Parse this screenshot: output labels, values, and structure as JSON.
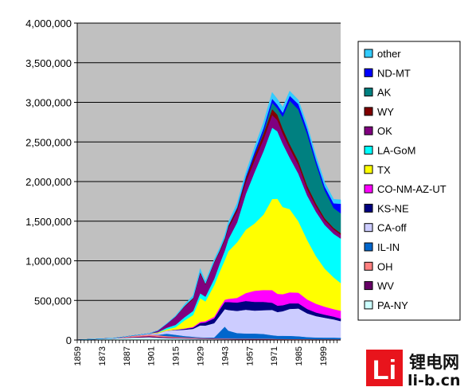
{
  "chart_data": {
    "type": "area",
    "stacked": true,
    "title": "",
    "xlabel": "",
    "ylabel": "",
    "ylim": [
      0,
      4000000
    ],
    "y_ticks": [
      "0",
      "500,000",
      "1,000,000",
      "1,500,000",
      "2,000,000",
      "2,500,000",
      "3,000,000",
      "3,500,000",
      "4,000,000"
    ],
    "x_ticks": [
      "1859",
      "1873",
      "1887",
      "1901",
      "1915",
      "1929",
      "1943",
      "1957",
      "1971",
      "1985",
      "1999"
    ],
    "xlim": [
      1859,
      2009
    ],
    "grid": "horizontal",
    "legend_position": "right",
    "x": [
      1859,
      1880,
      1890,
      1900,
      1905,
      1910,
      1915,
      1920,
      1925,
      1929,
      1932,
      1937,
      1940,
      1943,
      1945,
      1950,
      1955,
      1960,
      1965,
      1970,
      1973,
      1976,
      1980,
      1985,
      1990,
      1995,
      2000,
      2005,
      2009
    ],
    "series": [
      {
        "name": "PA-NY",
        "color": "#ccffff",
        "values": [
          2000,
          20000,
          30000,
          36000,
          30000,
          25000,
          22000,
          20000,
          18000,
          15000,
          14000,
          12000,
          11000,
          10000,
          10000,
          9000,
          9000,
          8000,
          8000,
          7000,
          6000,
          6000,
          5000,
          5000,
          5000,
          4000,
          4000,
          4000,
          4000
        ]
      },
      {
        "name": "WV",
        "color": "#660066",
        "values": [
          0,
          1000,
          8000,
          15000,
          13000,
          11000,
          9000,
          8000,
          7000,
          6000,
          5000,
          5000,
          4000,
          4000,
          4000,
          3000,
          3000,
          3000,
          3000,
          3000,
          3000,
          3000,
          3000,
          3000,
          3000,
          3000,
          3000,
          3000,
          3000
        ]
      },
      {
        "name": "OH",
        "color": "#ff8080",
        "values": [
          0,
          2000,
          15000,
          20000,
          18000,
          14000,
          10000,
          8000,
          7000,
          6000,
          6000,
          6000,
          6000,
          6000,
          6000,
          6000,
          6000,
          6000,
          6000,
          6000,
          5000,
          5000,
          5000,
          5000,
          4000,
          4000,
          4000,
          4000,
          4000
        ]
      },
      {
        "name": "IL-IN",
        "color": "#0066cc",
        "values": [
          0,
          0,
          0,
          0,
          5000,
          30000,
          25000,
          15000,
          10000,
          8000,
          8000,
          10000,
          80000,
          150000,
          100000,
          70000,
          65000,
          65000,
          60000,
          45000,
          40000,
          40000,
          40000,
          35000,
          25000,
          22000,
          20000,
          20000,
          18000
        ]
      },
      {
        "name": "CA-off",
        "color": "#ccccff",
        "values": [
          0,
          0,
          0,
          10000,
          20000,
          40000,
          60000,
          80000,
          100000,
          150000,
          150000,
          180000,
          200000,
          220000,
          260000,
          280000,
          300000,
          290000,
          300000,
          320000,
          300000,
          310000,
          340000,
          350000,
          300000,
          270000,
          250000,
          230000,
          210000
        ]
      },
      {
        "name": "KS-NE",
        "color": "#000080",
        "values": [
          0,
          0,
          0,
          0,
          0,
          0,
          5000,
          10000,
          15000,
          30000,
          40000,
          60000,
          80000,
          90000,
          100000,
          105000,
          110000,
          110000,
          105000,
          90000,
          80000,
          75000,
          70000,
          65000,
          55000,
          45000,
          40000,
          35000,
          32000
        ]
      },
      {
        "name": "CO-NM-AZ-UT",
        "color": "#ff00ff",
        "values": [
          0,
          0,
          0,
          0,
          0,
          0,
          1000,
          5000,
          10000,
          15000,
          15000,
          20000,
          25000,
          30000,
          40000,
          60000,
          100000,
          140000,
          150000,
          160000,
          150000,
          140000,
          140000,
          135000,
          120000,
          110000,
          100000,
          95000,
          100000
        ]
      },
      {
        "name": "TX",
        "color": "#ffff00",
        "values": [
          0,
          0,
          0,
          0,
          10000,
          15000,
          30000,
          100000,
          150000,
          300000,
          250000,
          400000,
          450000,
          500000,
          600000,
          700000,
          800000,
          850000,
          950000,
          1150000,
          1200000,
          1100000,
          1050000,
          900000,
          750000,
          600000,
          480000,
          400000,
          350000
        ]
      },
      {
        "name": "LA-GoM",
        "color": "#00ffff",
        "values": [
          0,
          0,
          0,
          0,
          5000,
          20000,
          30000,
          40000,
          50000,
          60000,
          60000,
          80000,
          100000,
          120000,
          150000,
          250000,
          450000,
          650000,
          800000,
          900000,
          850000,
          800000,
          650000,
          600000,
          560000,
          560000,
          550000,
          550000,
          560000
        ]
      },
      {
        "name": "OK",
        "color": "#800080",
        "values": [
          0,
          0,
          0,
          0,
          20000,
          50000,
          100000,
          130000,
          150000,
          250000,
          150000,
          200000,
          150000,
          130000,
          140000,
          140000,
          150000,
          150000,
          150000,
          160000,
          140000,
          130000,
          120000,
          110000,
          80000,
          70000,
          60000,
          55000,
          50000
        ]
      },
      {
        "name": "WY",
        "color": "#800000",
        "values": [
          0,
          0,
          0,
          0,
          0,
          0,
          5000,
          10000,
          15000,
          20000,
          15000,
          15000,
          20000,
          25000,
          30000,
          40000,
          50000,
          60000,
          70000,
          75000,
          70000,
          60000,
          50000,
          50000,
          45000,
          35000,
          25000,
          20000,
          20000
        ]
      },
      {
        "name": "AK",
        "color": "#008080",
        "values": [
          0,
          0,
          0,
          0,
          0,
          0,
          0,
          0,
          0,
          0,
          0,
          0,
          0,
          0,
          0,
          0,
          0,
          5000,
          20000,
          80000,
          80000,
          150000,
          550000,
          650000,
          650000,
          500000,
          350000,
          250000,
          250000
        ]
      },
      {
        "name": "ND-MT",
        "color": "#0000ff",
        "values": [
          0,
          0,
          0,
          0,
          0,
          0,
          0,
          0,
          0,
          0,
          0,
          0,
          1000,
          2000,
          5000,
          10000,
          20000,
          40000,
          50000,
          50000,
          45000,
          50000,
          60000,
          70000,
          60000,
          50000,
          50000,
          60000,
          120000
        ]
      },
      {
        "name": "other",
        "color": "#33ccff",
        "values": [
          0,
          0,
          0,
          0,
          0,
          5000,
          10000,
          20000,
          30000,
          40000,
          30000,
          30000,
          30000,
          40000,
          40000,
          50000,
          50000,
          60000,
          70000,
          80000,
          70000,
          70000,
          60000,
          50000,
          50000,
          50000,
          50000,
          50000,
          50000
        ]
      }
    ]
  },
  "watermark": {
    "logo_letter": "Li",
    "chinese": "锂电网",
    "domain": "li-b.cn"
  }
}
